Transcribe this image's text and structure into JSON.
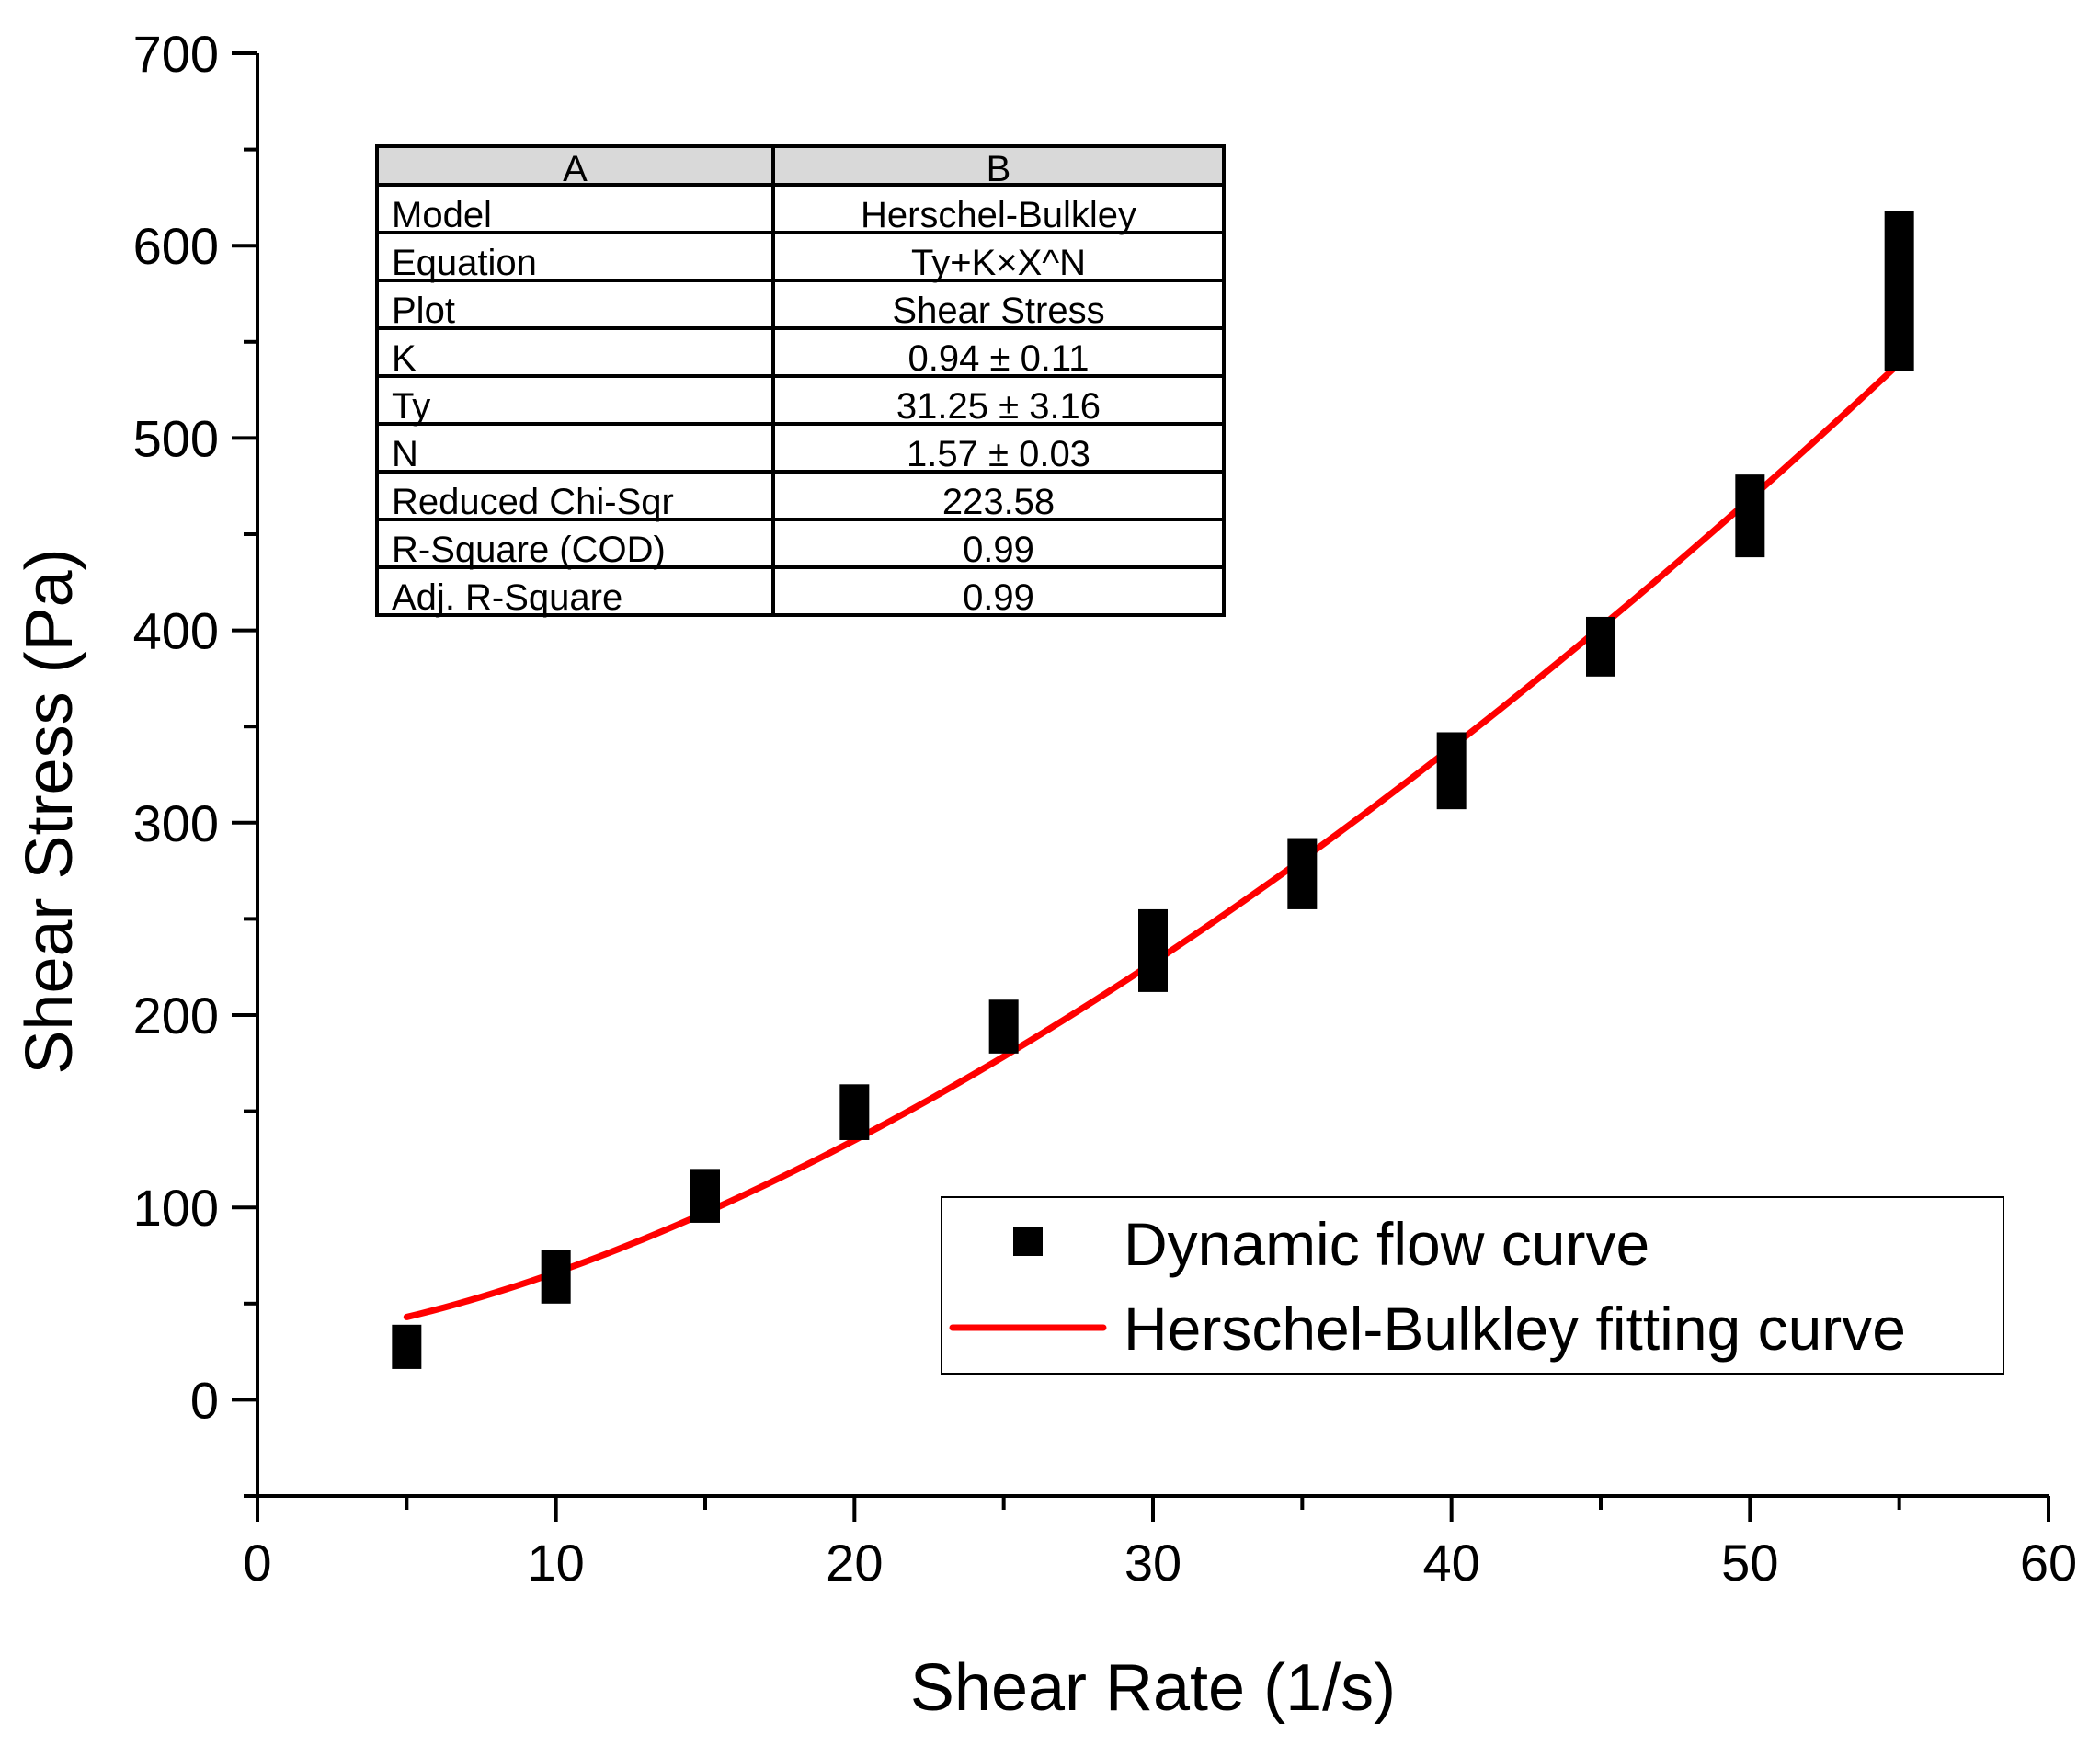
{
  "chart_data": {
    "type": "scatter",
    "title": "",
    "xlabel": "Shear Rate (1/s)",
    "ylabel": "Shear Stress (Pa)",
    "xlim": [
      0,
      60
    ],
    "ylim": [
      -50,
      700
    ],
    "x_ticks": [
      0,
      10,
      20,
      30,
      40,
      50,
      60
    ],
    "y_ticks": [
      0,
      100,
      200,
      300,
      400,
      500,
      600,
      700
    ],
    "series": [
      {
        "name": "Dynamic flow curve",
        "kind": "points-with-range",
        "color": "#000000",
        "points": [
          {
            "x": 5,
            "low": 16,
            "high": 39
          },
          {
            "x": 10,
            "low": 50,
            "high": 78
          },
          {
            "x": 15,
            "low": 92,
            "high": 120
          },
          {
            "x": 20,
            "low": 135,
            "high": 164
          },
          {
            "x": 25,
            "low": 180,
            "high": 208
          },
          {
            "x": 30,
            "low": 212,
            "high": 255
          },
          {
            "x": 35,
            "low": 255,
            "high": 292
          },
          {
            "x": 40,
            "low": 307,
            "high": 347
          },
          {
            "x": 45,
            "low": 376,
            "high": 407
          },
          {
            "x": 50,
            "low": 438,
            "high": 481
          },
          {
            "x": 55,
            "low": 535,
            "high": 618
          }
        ]
      },
      {
        "name": "Herschel-Bulkley fitting curve",
        "kind": "line",
        "color": "#ff0000",
        "model": {
          "Ty": 31.25,
          "K": 0.94,
          "N": 1.57
        },
        "x_range": [
          5,
          55
        ]
      }
    ],
    "legend": {
      "position": "bottom-right",
      "entries": [
        "Dynamic flow curve",
        "Herschel-Bulkley fitting curve"
      ]
    },
    "table": {
      "headers": [
        "A",
        "B"
      ],
      "rows": [
        [
          "Model",
          "Herschel-Bulkley"
        ],
        [
          "Equation",
          "Ty+K×X^N"
        ],
        [
          "Plot",
          "Shear Stress"
        ],
        [
          "K",
          "0.94 ± 0.11"
        ],
        [
          "Ty",
          "31.25 ± 3.16"
        ],
        [
          "N",
          "1.57 ± 0.03"
        ],
        [
          "Reduced Chi-Sqr",
          "223.58"
        ],
        [
          "R-Square (COD)",
          "0.99"
        ],
        [
          "Adj. R-Square",
          "0.99"
        ]
      ]
    }
  }
}
